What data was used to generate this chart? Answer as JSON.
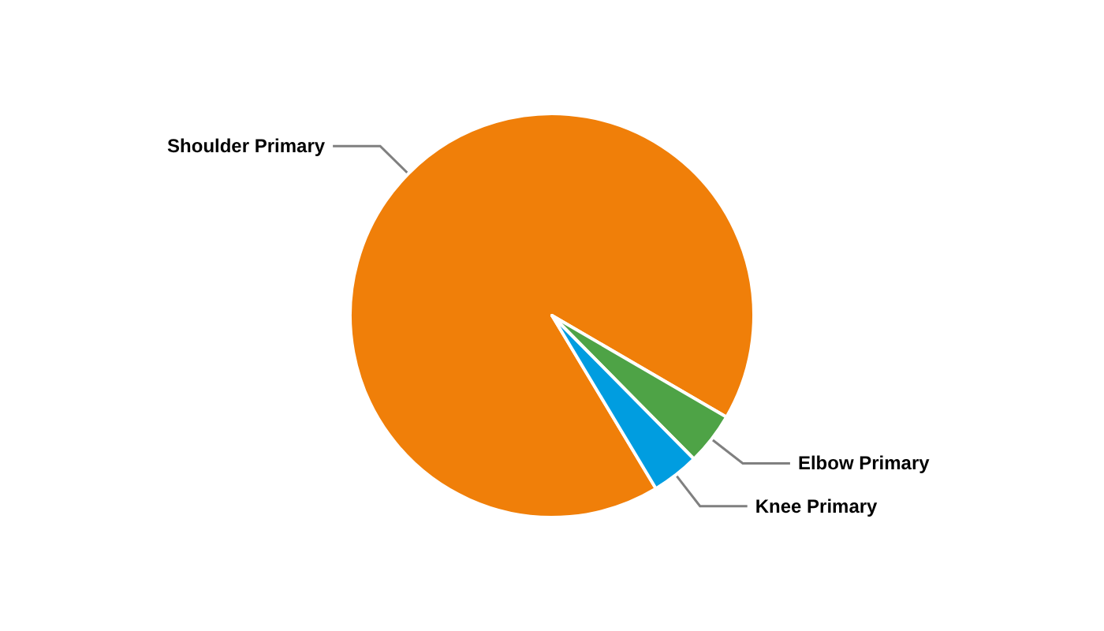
{
  "chart_data": {
    "type": "pie",
    "categories": [
      "Shoulder Primary",
      "Elbow Primary",
      "Knee Primary"
    ],
    "values": [
      92,
      4.2,
      3.8
    ],
    "colors": [
      "#f07f09",
      "#4ea346",
      "#009de0"
    ]
  }
}
